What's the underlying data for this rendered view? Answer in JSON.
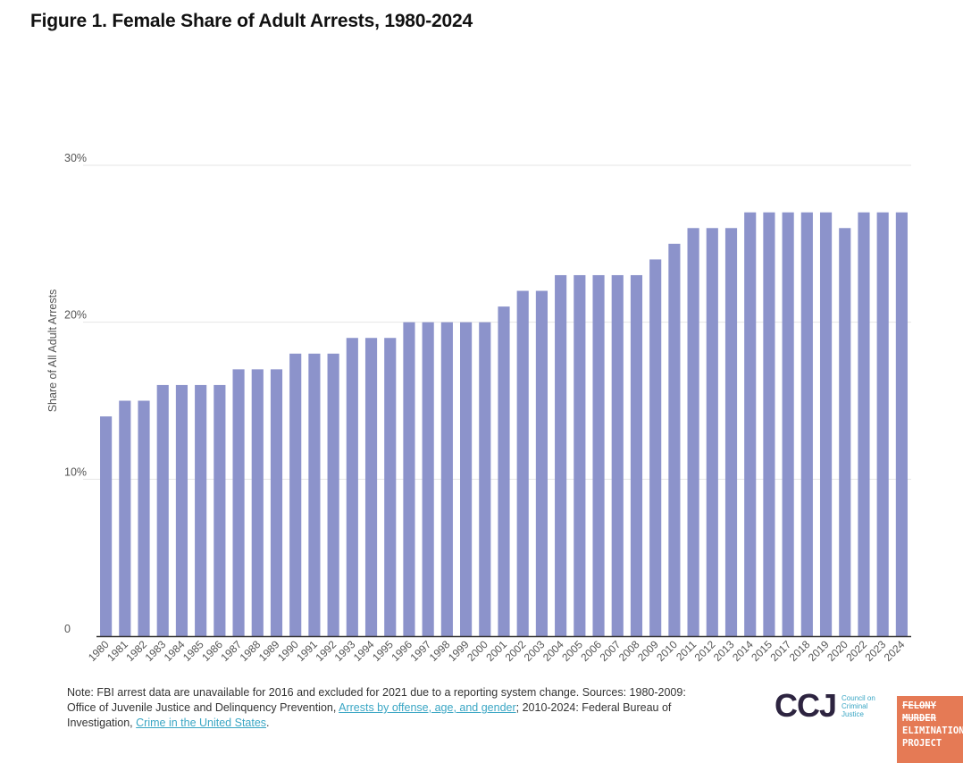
{
  "colors": {
    "bar": "#8c93cb",
    "grid": "#e6e6e6",
    "axis": "#333333",
    "link": "#3aa6c4",
    "brand_dark": "#2d2440",
    "brand_orange": "#e57a55"
  },
  "chart_data": {
    "type": "bar",
    "title": "Figure 1. Female Share of Adult Arrests, 1980-2024",
    "xlabel": "",
    "ylabel": "Share of All Adult Arrests",
    "ylim": [
      0,
      30
    ],
    "yticks": [
      {
        "value": 0,
        "label": "0"
      },
      {
        "value": 10,
        "label": "10%"
      },
      {
        "value": 20,
        "label": "20%"
      },
      {
        "value": 30,
        "label": "30%"
      }
    ],
    "categories": [
      "1980",
      "1981",
      "1982",
      "1983",
      "1984",
      "1985",
      "1986",
      "1987",
      "1988",
      "1989",
      "1990",
      "1991",
      "1992",
      "1993",
      "1994",
      "1995",
      "1996",
      "1997",
      "1998",
      "1999",
      "2000",
      "2001",
      "2002",
      "2003",
      "2004",
      "2005",
      "2006",
      "2007",
      "2008",
      "2009",
      "2010",
      "2011",
      "2012",
      "2013",
      "2014",
      "2015",
      "2017",
      "2018",
      "2019",
      "2020",
      "2022",
      "2023",
      "2024"
    ],
    "values": [
      14,
      15,
      15,
      16,
      16,
      16,
      16,
      17,
      17,
      17,
      18,
      18,
      18,
      19,
      19,
      19,
      20,
      20,
      20,
      20,
      20,
      21,
      22,
      22,
      23,
      23,
      23,
      23,
      23,
      24,
      25,
      26,
      26,
      26,
      27,
      27,
      27,
      27,
      27,
      26,
      27,
      27,
      27
    ]
  },
  "note": {
    "text_1": "Note: FBI arrest data are unavailable for 2016 and excluded for 2021 due to a reporting system change. Sources: 1980-2009: Office of Juvenile Justice and Delinquency Prevention, ",
    "link_1": "Arrests by offense, age, and gender",
    "text_2": "; 2010-2024: Federal Bureau of Investigation, ",
    "link_2": "Crime in the United States",
    "text_3": "."
  },
  "logos": {
    "ccj_mark": "CCJ",
    "ccj_sub": "Council on Criminal Justice",
    "fmep_line1": "FELONY",
    "fmep_line2": "MURDER",
    "fmep_line3": "ELIMINATION",
    "fmep_line4": "PROJECT"
  }
}
